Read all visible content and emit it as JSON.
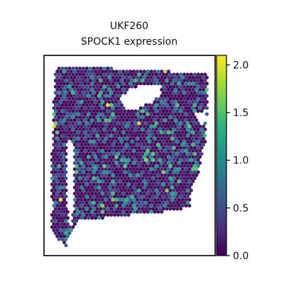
{
  "chart_data": {
    "type": "scatter",
    "title": "UKF260",
    "subtitle": "SPOCK1 expression",
    "xlabel": "",
    "ylabel": "",
    "grid": false,
    "colorbar": {
      "colormap": "viridis",
      "vmin": 0.0,
      "vmax": 2.1,
      "ticks": [
        0.0,
        0.5,
        1.0,
        1.5,
        2.0
      ],
      "tick_labels": [
        "0.0",
        "0.5",
        "1.0",
        "1.5",
        "2.0"
      ],
      "position": "right"
    },
    "marker": "hexagon",
    "spots_summary": "Visium spatial spots forming a tissue section with a hole in the upper right and a narrow gap on the left side; most spots have low expression (0.0-0.7), scattered spots at 1.0-1.5, a few near 2.0."
  }
}
